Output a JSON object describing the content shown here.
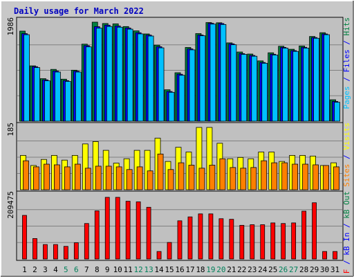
{
  "chart_data": {
    "type": "bar",
    "title": "Daily usage for March 2022",
    "days": [
      "1",
      "2",
      "3",
      "4",
      "5",
      "6",
      "7",
      "8",
      "9",
      "10",
      "11",
      "12",
      "13",
      "14",
      "15",
      "16",
      "17",
      "18",
      "19",
      "20",
      "21",
      "22",
      "23",
      "24",
      "25",
      "26",
      "27",
      "28",
      "29",
      "30",
      "31"
    ],
    "weekend_days": [
      "5",
      "6",
      "12",
      "13",
      "19",
      "20",
      "26",
      "27"
    ],
    "panels": [
      {
        "id": "hits",
        "ylabel_parts": [
          {
            "text": "Pages",
            "color": "#00C0FF"
          },
          {
            "text": " / ",
            "color": "#0000FF"
          },
          {
            "text": "Files",
            "color": "#0000FF"
          },
          {
            "text": " / ",
            "color": "#0000FF"
          },
          {
            "text": "Hits",
            "color": "#008040"
          }
        ],
        "ymax_label": "1986",
        "ymax": 1986,
        "series": [
          {
            "name": "Hits",
            "color": "#008040",
            "values": [
              1806,
              1110,
              853,
              1039,
              843,
              1023,
              1545,
              1986,
              1959,
              1952,
              1898,
              1811,
              1750,
              1525,
              630,
              972,
              1479,
              1757,
              1978,
              1974,
              1571,
              1388,
              1347,
              1210,
              1372,
              1503,
              1443,
              1509,
              1699,
              1775,
              430
            ]
          },
          {
            "name": "Files",
            "color": "#0000FF",
            "values": [
              1756,
              1094,
              829,
              1006,
              814,
              1004,
              1516,
              1896,
              1926,
              1909,
              1869,
              1774,
              1727,
              1493,
              596,
              942,
              1450,
              1728,
              1964,
              1959,
              1552,
              1355,
              1319,
              1178,
              1343,
              1481,
              1416,
              1482,
              1678,
              1750,
              396
            ]
          },
          {
            "name": "Pages",
            "color": "#00C0FF",
            "values": [
              1735,
              1076,
              810,
              986,
              798,
              986,
              1491,
              1867,
              1900,
              1885,
              1846,
              1751,
              1708,
              1471,
              579,
              921,
              1431,
              1713,
              1947,
              1939,
              1533,
              1340,
              1303,
              1162,
              1328,
              1466,
              1400,
              1466,
              1663,
              1735,
              380
            ]
          }
        ]
      },
      {
        "id": "visits",
        "ylabel_parts": [
          {
            "text": "Sites",
            "color": "#FF8000"
          },
          {
            "text": " / ",
            "color": "#0000FF"
          },
          {
            "text": "Visits",
            "color": "#FFFF00"
          }
        ],
        "ymax_label": "185",
        "ymax": 185,
        "series": [
          {
            "name": "Visits",
            "color": "#FFFF00",
            "values": [
              102,
              72,
              90,
              102,
              88,
              102,
              136,
              143,
              117,
              79,
              92,
              117,
              117,
              153,
              84,
              126,
              112,
              185,
              185,
              138,
              92,
              96,
              92,
              112,
              112,
              84,
              102,
              102,
              100,
              72,
              80
            ]
          },
          {
            "name": "Sites",
            "color": "#FF8000",
            "values": [
              86,
              68,
              76,
              74,
              68,
              76,
              64,
              70,
              70,
              68,
              60,
              68,
              56,
              106,
              60,
              80,
              73,
              64,
              73,
              92,
              66,
              64,
              66,
              86,
              80,
              80,
              76,
              76,
              74,
              72,
              68
            ]
          }
        ]
      },
      {
        "id": "kbytes",
        "ylabel_parts": [
          {
            "text": "kB F",
            "color": "#FF0000"
          },
          {
            "text": " / ",
            "color": "#0000FF"
          },
          {
            "text": "kB In",
            "color": "#0000FF"
          },
          {
            "text": " / ",
            "color": "#0000FF"
          },
          {
            "text": "kB Out",
            "color": "#008040"
          }
        ],
        "ymax_label": "209475",
        "ymax": 209475,
        "series": [
          {
            "name": "kB F",
            "color": "#FF0000",
            "values": [
              145000,
              68000,
              48000,
              48000,
              42000,
              54000,
              118000,
              160000,
              205000,
              205000,
              192000,
              190000,
              172000,
              25000,
              55000,
              127000,
              140000,
              150000,
              150000,
              134000,
              132000,
              112000,
              114000,
              114000,
              120000,
              118000,
              120000,
              159000,
              187000,
              25000,
              25000
            ]
          }
        ]
      }
    ]
  }
}
